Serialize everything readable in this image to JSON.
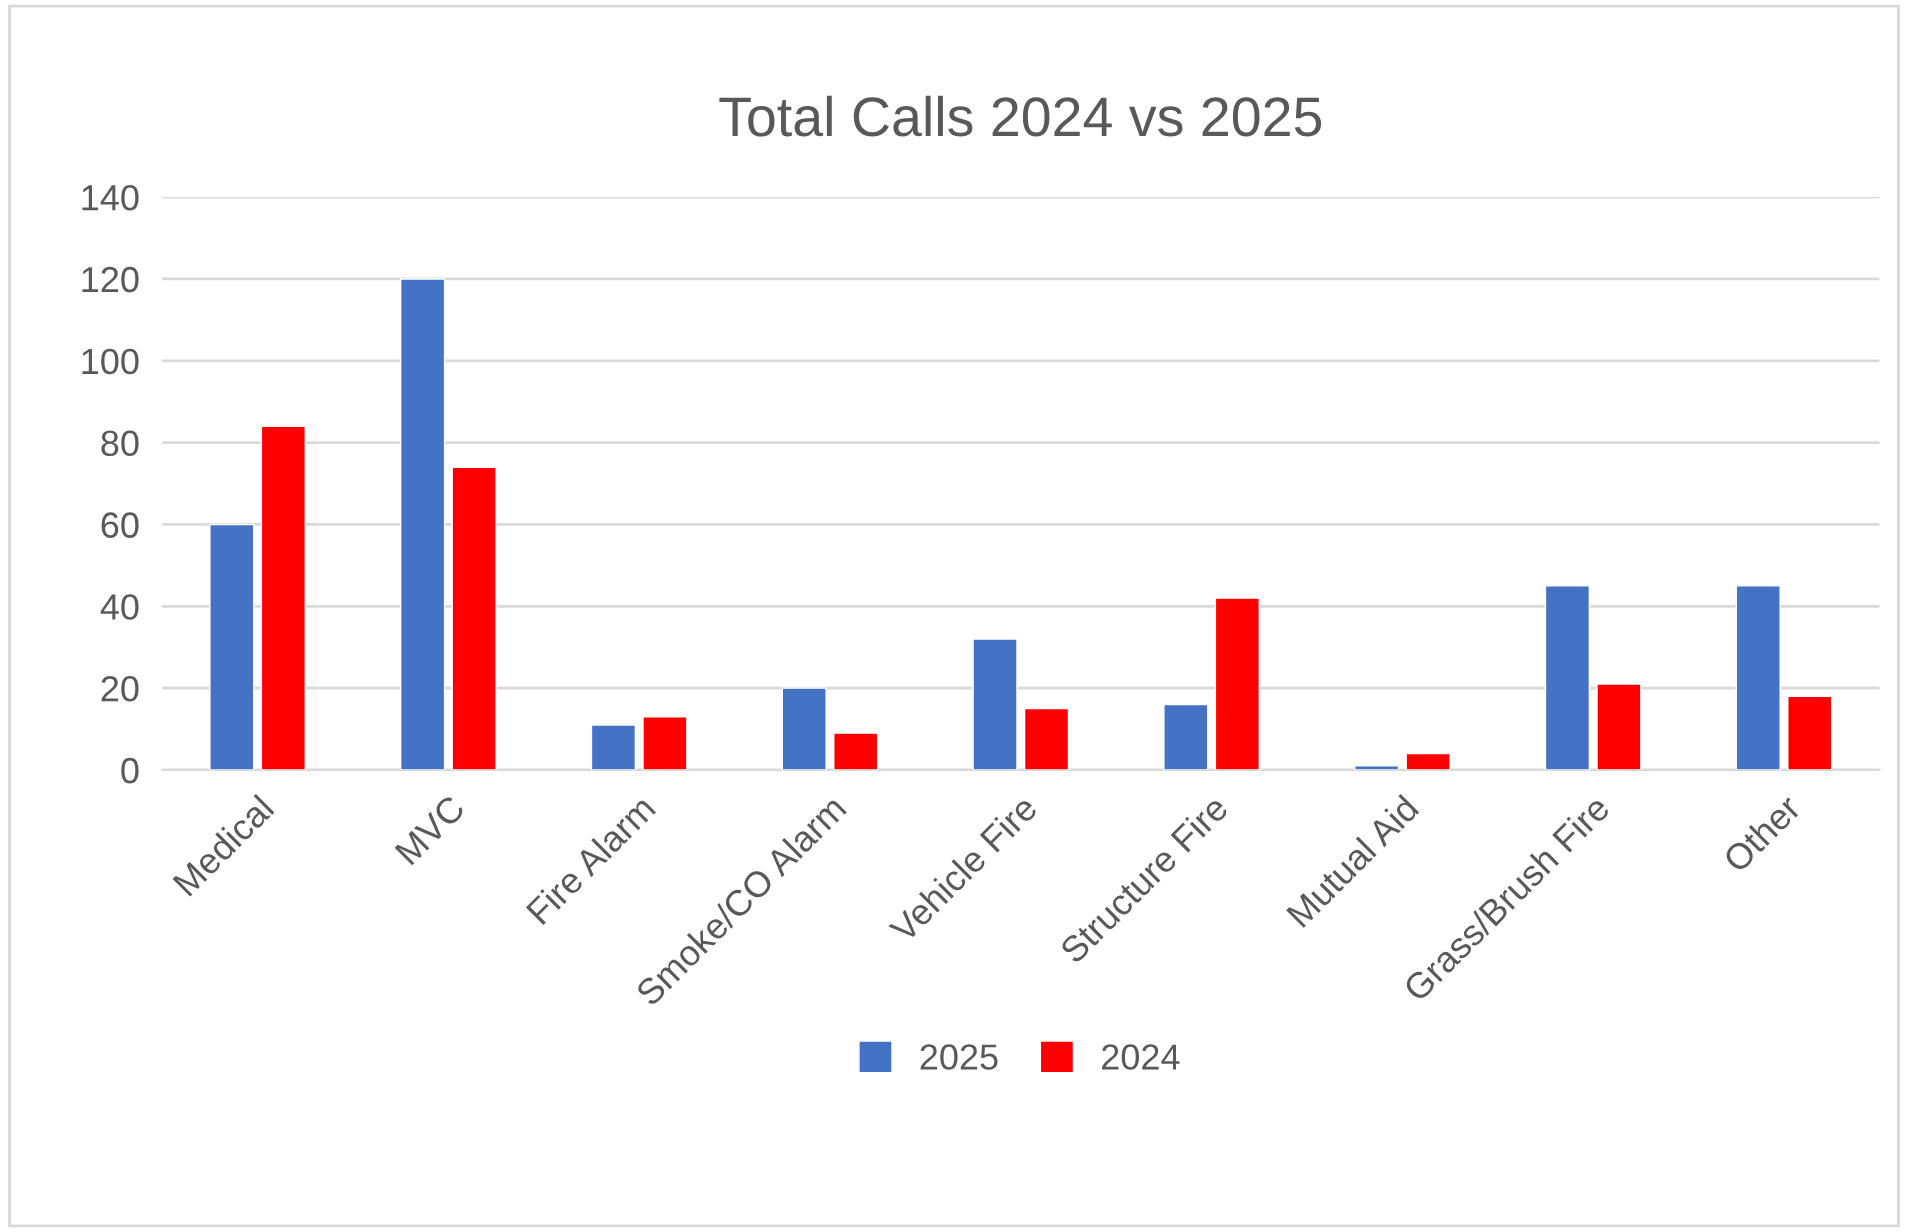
{
  "chart_data": {
    "type": "bar",
    "title": "Total Calls 2024 vs 2025",
    "categories": [
      "Medical",
      "MVC",
      "Fire Alarm",
      "Smoke/CO Alarm",
      "Vehicle Fire",
      "Structure Fire",
      "Mutual Aid",
      "Grass/Brush Fire",
      "Other"
    ],
    "series": [
      {
        "name": "2025",
        "color": "#4472c4",
        "values": [
          60,
          120,
          11,
          20,
          32,
          16,
          1,
          45,
          45
        ]
      },
      {
        "name": "2024",
        "color": "#ff0000",
        "values": [
          84,
          74,
          13,
          9,
          15,
          42,
          4,
          21,
          18
        ]
      }
    ],
    "ylim": [
      0,
      140
    ],
    "yticks": [
      0,
      20,
      40,
      60,
      80,
      100,
      120,
      140
    ],
    "grid": "y",
    "legend": "bottom"
  }
}
